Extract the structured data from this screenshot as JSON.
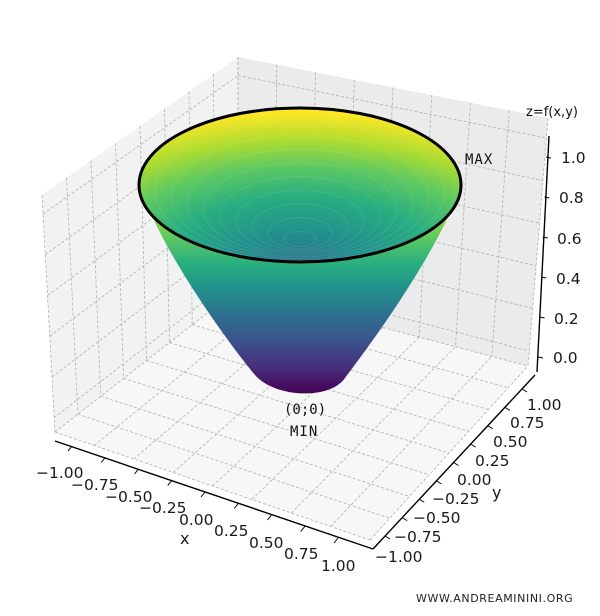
{
  "chart_data": {
    "type": "surface3d",
    "title": "",
    "function": "z = x^2 + y^2",
    "domain": "disc x^2 + y^2 <= 1",
    "colormap": "viridis",
    "xlabel": "x",
    "ylabel": "y",
    "zlabel": "z=f(x,y)",
    "xlim": [
      -1.0,
      1.0
    ],
    "ylim": [
      -1.0,
      1.0
    ],
    "zlim": [
      0.0,
      1.0
    ],
    "x_ticks": [
      "−1.00",
      "−0.75",
      "−0.50",
      "−0.25",
      "0.00",
      "0.25",
      "0.50",
      "0.75",
      "1.00"
    ],
    "y_ticks": [
      "−1.00",
      "−0.75",
      "−0.50",
      "−0.25",
      "0.00",
      "0.25",
      "0.50",
      "0.75",
      "1.00"
    ],
    "z_ticks": [
      "0.0",
      "0.2",
      "0.4",
      "0.6",
      "0.8",
      "1.0"
    ],
    "grid": true,
    "rim_circle": {
      "z": 1.0,
      "radius": 1.0,
      "color": "#000000"
    },
    "annotations": [
      {
        "text": "(0;0)",
        "at": [
          0,
          0,
          0
        ]
      },
      {
        "text": "MIN",
        "at": [
          0,
          0,
          0
        ]
      },
      {
        "text": "MAX",
        "at": "rim z=1"
      }
    ],
    "colors": {
      "pane_left": "#f2f2f2",
      "pane_back": "#ebebeb",
      "pane_floor": "#f7f7f7",
      "grid": "#b0b0b0",
      "viridis_low": "#440154",
      "viridis_mid": "#21918c",
      "viridis_high": "#fde725"
    }
  },
  "watermark": "WWW.ANDREAMININI.ORG"
}
